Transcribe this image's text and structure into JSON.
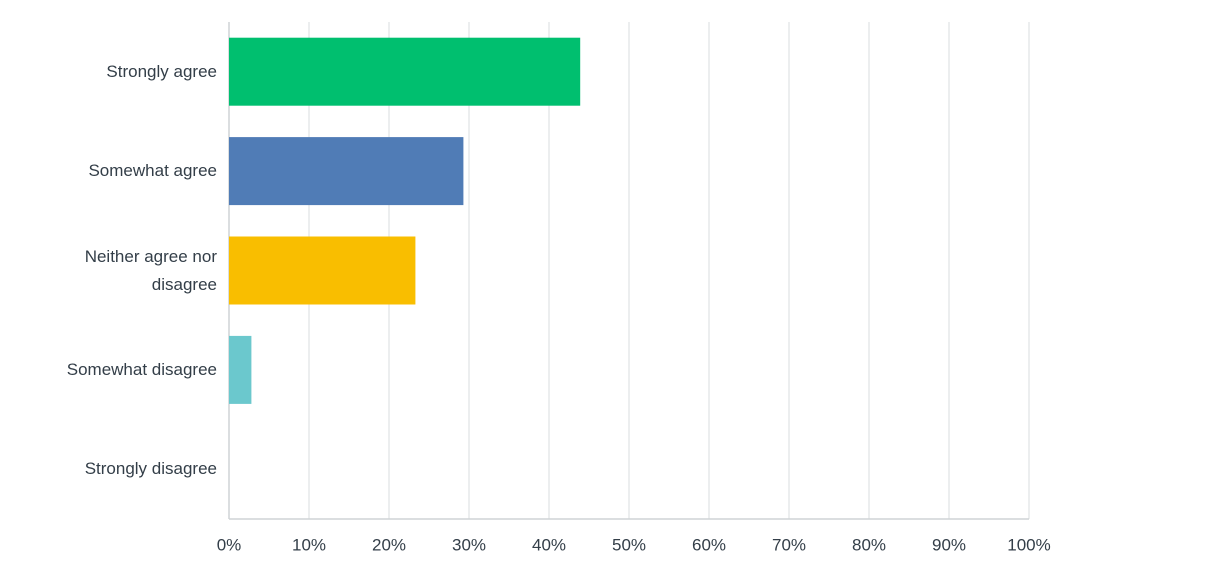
{
  "chart_data": {
    "type": "hbar",
    "categories": [
      "Strongly agree",
      "Somewhat agree",
      "Neither agree nor disagree",
      "Somewhat disagree",
      "Strongly disagree"
    ],
    "values": [
      43.9,
      29.3,
      23.3,
      2.8,
      0
    ],
    "colors": [
      "#00bf6f",
      "#507cb6",
      "#f9be00",
      "#6bc8cd",
      "#ff8b4f"
    ],
    "xlim": [
      0,
      100
    ],
    "xticks": [
      {
        "value": 0,
        "label": "0%"
      },
      {
        "value": 10,
        "label": "10%"
      },
      {
        "value": 20,
        "label": "20%"
      },
      {
        "value": 30,
        "label": "30%"
      },
      {
        "value": 40,
        "label": "40%"
      },
      {
        "value": 50,
        "label": "50%"
      },
      {
        "value": 60,
        "label": "60%"
      },
      {
        "value": 70,
        "label": "70%"
      },
      {
        "value": 80,
        "label": "80%"
      },
      {
        "value": 90,
        "label": "90%"
      },
      {
        "value": 100,
        "label": "100%"
      }
    ],
    "grid": true
  }
}
